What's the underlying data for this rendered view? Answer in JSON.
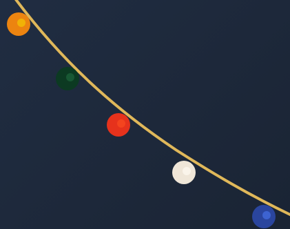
{
  "scene": {
    "background_color": "#1e2a3c",
    "track": {
      "color": "#e0b85a"
    },
    "balls": [
      {
        "name": "orange",
        "color": "#ec8410",
        "core": "#f2b705"
      },
      {
        "name": "dark-green",
        "color": "#0c3a22",
        "core": "#1a5c36"
      },
      {
        "name": "red",
        "color": "#e6321c",
        "core": "#f5461f"
      },
      {
        "name": "cream",
        "color": "#efe6d8",
        "core": "#fbf5ec"
      },
      {
        "name": "blue",
        "color": "#2a459e",
        "core": "#3f66d6"
      }
    ]
  }
}
